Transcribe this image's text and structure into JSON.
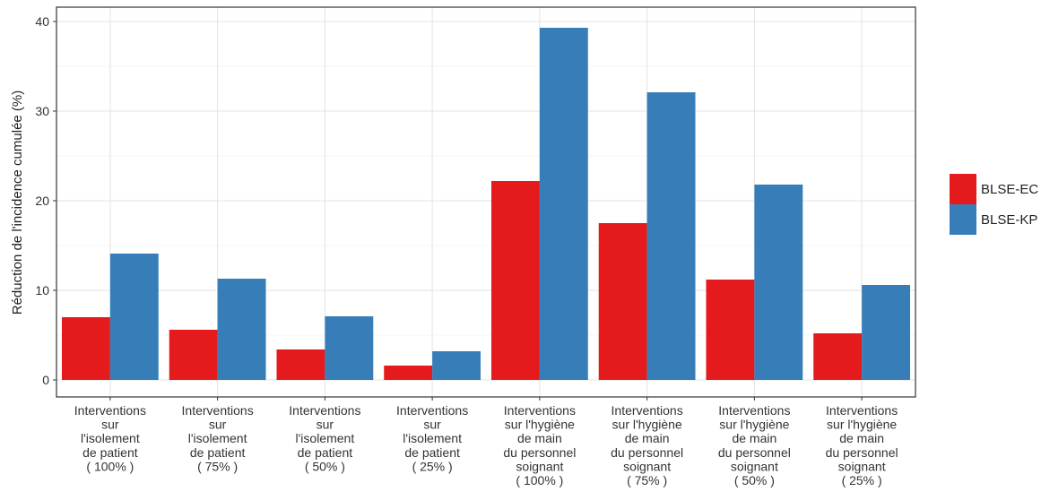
{
  "chart_data": {
    "type": "bar",
    "title": "",
    "xlabel": "",
    "ylabel": "Réduction de l'incidence cumulée (%)",
    "ylim": [
      -1.9,
      41.6
    ],
    "yticks": [
      0,
      10,
      20,
      30,
      40
    ],
    "grid": true,
    "legend_position": "right",
    "categories": [
      [
        "Interventions",
        "sur",
        "l'isolement",
        "de patient",
        "( 100% )"
      ],
      [
        "Interventions",
        "sur",
        "l'isolement",
        "de patient",
        "( 75% )"
      ],
      [
        "Interventions",
        "sur",
        "l'isolement",
        "de patient",
        "( 50% )"
      ],
      [
        "Interventions",
        "sur",
        "l'isolement",
        "de patient",
        "( 25% )"
      ],
      [
        "Interventions",
        "sur l'hygiène",
        "de main",
        "du personnel",
        "soignant",
        "( 100% )"
      ],
      [
        "Interventions",
        "sur l'hygiène",
        "de main",
        "du personnel",
        "soignant",
        "( 75% )"
      ],
      [
        "Interventions",
        "sur l'hygiène",
        "de main",
        "du personnel",
        "soignant",
        "( 50% )"
      ],
      [
        "Interventions",
        "sur l'hygiène",
        "de main",
        "du personnel",
        "soignant",
        "( 25% )"
      ]
    ],
    "series": [
      {
        "name": "BLSE-EC",
        "color": "#e41a1c",
        "values": [
          7.0,
          5.6,
          3.4,
          1.6,
          22.2,
          17.5,
          11.2,
          5.2
        ]
      },
      {
        "name": "BLSE-KP",
        "color": "#377eb8",
        "values": [
          14.1,
          11.3,
          7.1,
          3.2,
          39.3,
          32.1,
          21.8,
          10.6
        ]
      }
    ]
  }
}
